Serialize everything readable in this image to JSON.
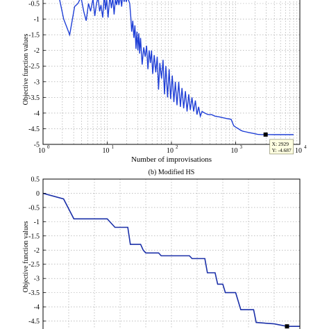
{
  "chart_data": [
    {
      "type": "line",
      "title": "",
      "xlabel": "Number of improvisations",
      "ylabel": "Objective function values",
      "xscale": "log",
      "xlim": [
        1,
        10000
      ],
      "ylim": [
        -5,
        -0.5
      ],
      "xticks": [
        1,
        10,
        100,
        1000,
        10000
      ],
      "xtick_labels": [
        [
          "10",
          "0"
        ],
        [
          "10",
          "1"
        ],
        [
          "10",
          "2"
        ],
        [
          "10",
          "3"
        ],
        [
          "10",
          "4"
        ]
      ],
      "yticks": [
        -0.5,
        -1,
        -1.5,
        -2,
        -2.5,
        -3,
        -3.5,
        -4,
        -4.5,
        -5
      ],
      "ytick_labels": [
        "-0.5",
        "-1",
        "-1.5",
        "-2",
        "-2.5",
        "-3",
        "-3.5",
        "-4",
        "-4.5",
        "-5"
      ],
      "grid": true,
      "series": [
        {
          "color": "#1f3fd6",
          "x": [
            1.8,
            2.1,
            2.6,
            3.1,
            3.5,
            3.9,
            4.3,
            4.7,
            5.1,
            5.5,
            6,
            6.4,
            6.8,
            7.2,
            7.6,
            8.0,
            8.5,
            9.0,
            9.4,
            9.8,
            10.3,
            11,
            11.6,
            12.2,
            12.8,
            13.4,
            14,
            14.6,
            15.2,
            16,
            16.8,
            17.5,
            18.3,
            19,
            19.8,
            20.6,
            21.5,
            22.4,
            23.3,
            24,
            25,
            26,
            27,
            28,
            29,
            30,
            31,
            32,
            33,
            35,
            37,
            39,
            41,
            43,
            45,
            47,
            49,
            51,
            54,
            57,
            60,
            63,
            66,
            70,
            74,
            78,
            82,
            87,
            92,
            97,
            103,
            109,
            115,
            122,
            130,
            138,
            146,
            155,
            165,
            175,
            186,
            197,
            209,
            222,
            236,
            250,
            265,
            282,
            300,
            330,
            370,
            420,
            480,
            550,
            640,
            750,
            850,
            930,
            1000,
            1100,
            1200,
            1300,
            1450,
            1600,
            1800,
            2000,
            2200,
            2500,
            2929,
            3300,
            4000,
            5500,
            8000
          ],
          "y": [
            -0.35,
            -1.0,
            -1.5,
            -0.6,
            -0.5,
            -0.3,
            -0.75,
            -1.05,
            -0.5,
            -0.75,
            -0.35,
            -0.9,
            -0.5,
            -0.3,
            -0.75,
            -0.55,
            -0.95,
            -0.2,
            -0.7,
            -0.35,
            -0.95,
            -0.25,
            -0.65,
            -0.3,
            -0.85,
            -0.35,
            -0.55,
            -0.3,
            -0.55,
            -0.25,
            -0.6,
            -0.15,
            -0.45,
            -0.25,
            -0.45,
            -0.3,
            -0.4,
            -0.5,
            -0.95,
            -1.4,
            -1.05,
            -1.6,
            -1.2,
            -1.95,
            -1.4,
            -2.0,
            -1.45,
            -2.1,
            -1.6,
            -2.45,
            -1.9,
            -2.2,
            -1.85,
            -2.6,
            -2.0,
            -2.4,
            -2.0,
            -2.75,
            -2.15,
            -2.7,
            -2.2,
            -3.25,
            -2.4,
            -2.9,
            -2.3,
            -3.4,
            -2.5,
            -3.5,
            -2.6,
            -3.55,
            -2.8,
            -3.65,
            -3.0,
            -3.75,
            -3.0,
            -3.8,
            -3.2,
            -3.85,
            -3.3,
            -3.95,
            -3.4,
            -3.9,
            -3.5,
            -3.95,
            -3.6,
            -4.05,
            -3.8,
            -4.1,
            -3.95,
            -4.0,
            -4.05,
            -4.05,
            -4.1,
            -4.12,
            -4.15,
            -4.18,
            -4.2,
            -4.4,
            -4.45,
            -4.5,
            -4.55,
            -4.58,
            -4.6,
            -4.62,
            -4.64,
            -4.66,
            -4.68,
            -4.687,
            -4.687,
            -4.687,
            -4.69,
            -4.69,
            -4.69
          ]
        }
      ],
      "annotations": [
        {
          "x": 2929,
          "y": -4.687,
          "lines": [
            "X: 2929",
            "Y: -4.687"
          ]
        }
      ],
      "caption": "(b) Modified HS"
    },
    {
      "type": "line",
      "title": "",
      "xlabel": "",
      "ylabel": "Objective function values",
      "xlim": [
        0,
        10000
      ],
      "ylim": [
        -5,
        0.5
      ],
      "yticks": [
        0.5,
        0,
        -0.5,
        -1,
        -1.5,
        -2,
        -2.5,
        -3,
        -3.5,
        -4,
        -4.5
      ],
      "ytick_labels": [
        "0.5",
        "0",
        "-0.5",
        "-1",
        "-1.5",
        "-2",
        "-2.5",
        "-3",
        "-3.5",
        "-4",
        "-4.5"
      ],
      "grid": true,
      "series": [
        {
          "color": "#1a2fa8",
          "x": [
            0,
            800,
            1200,
            2500,
            2600,
            2800,
            3300,
            3400,
            3800,
            3900,
            4000,
            4500,
            4600,
            5700,
            5800,
            6300,
            6400,
            6700,
            6800,
            7000,
            7100,
            7500,
            7700,
            8200,
            8300,
            9000,
            9500,
            10000
          ],
          "y": [
            0,
            -0.2,
            -0.9,
            -0.9,
            -1.0,
            -1.2,
            -1.2,
            -1.8,
            -1.8,
            -2.0,
            -2.1,
            -2.1,
            -2.2,
            -2.2,
            -2.3,
            -2.3,
            -2.8,
            -2.8,
            -3.2,
            -3.2,
            -3.5,
            -3.5,
            -4.1,
            -4.1,
            -4.55,
            -4.6,
            -4.687,
            -4.687
          ]
        }
      ],
      "markers": [
        {
          "x": 9500,
          "y": -4.687
        }
      ]
    }
  ]
}
